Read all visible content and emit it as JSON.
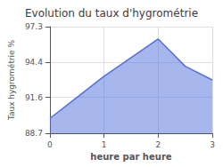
{
  "chart_data": {
    "type": "area",
    "title": "Evolution du taux d'hygrométrie",
    "xlabel": "heure par heure",
    "ylabel": "Taux hygrométrie %",
    "x": [
      0,
      0.5,
      1,
      2,
      2.5,
      3
    ],
    "values": [
      89.9,
      91.6,
      93.3,
      96.3,
      94.1,
      93.0
    ],
    "xlim": [
      0,
      3
    ],
    "ylim": [
      88.7,
      97.3
    ],
    "xticks": [
      0,
      1,
      2,
      3
    ],
    "yticks": [
      88.7,
      91.6,
      94.4,
      97.3
    ],
    "grid": true
  }
}
